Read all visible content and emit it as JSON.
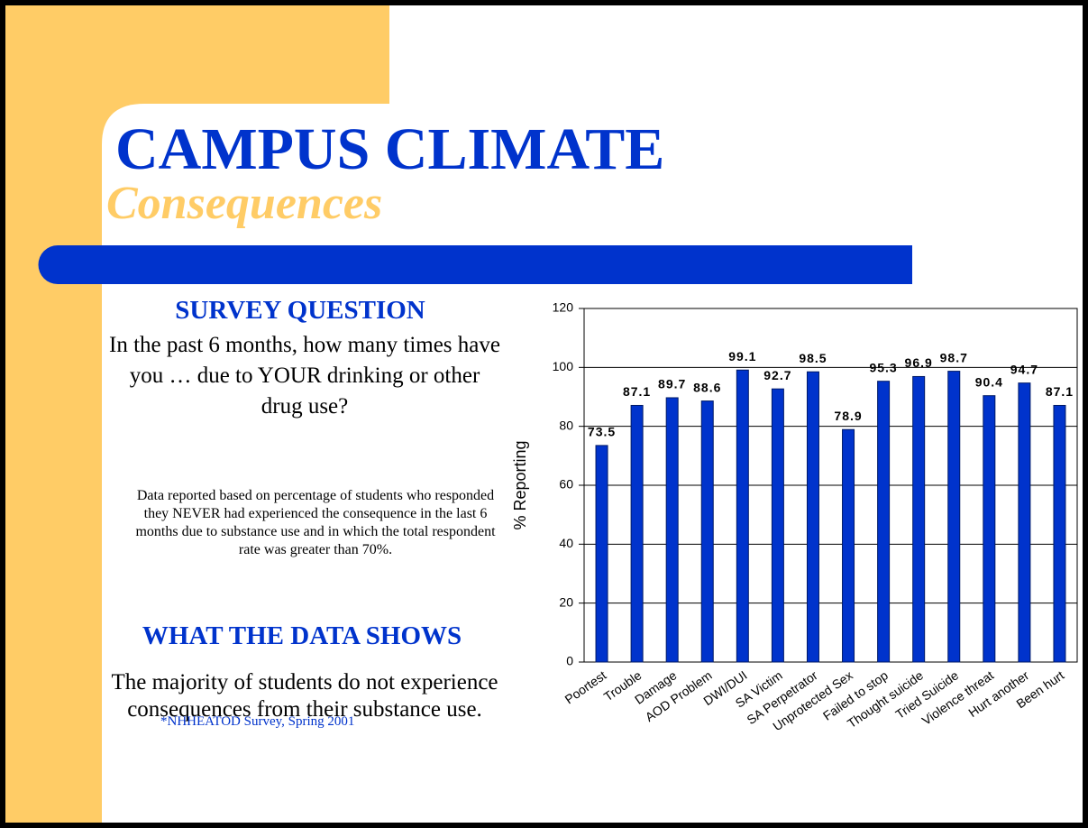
{
  "slide": {
    "title": "CAMPUS CLIMATE",
    "subtitle": "Consequences",
    "survey_heading": "SURVEY QUESTION",
    "survey_question": "In the past 6 months, how many times have you … due to YOUR drinking or other drug use?",
    "note": "Data reported based on percentage of students who responded they NEVER had experienced the consequence in the last 6 months due to substance use and in which the total respondent rate was greater than 70%.",
    "data_heading": "WHAT THE DATA SHOWS",
    "conclusion": "The majority of students do not experience consequences from their substance use.",
    "source": "*NHHEATOD Survey, Spring 2001"
  },
  "chart_data": {
    "type": "bar",
    "y_label": "% Reporting",
    "categories": [
      "Poortest",
      "Trouble",
      "Damage",
      "AOD Problem",
      "DWI/DUI",
      "SA Victim",
      "SA Perpetrator",
      "Unprotected Sex",
      "Failed to stop",
      "Thought suicide",
      "Tried Suicide",
      "Violence threat",
      "Hurt another",
      "Been hurt"
    ],
    "values": [
      73.5,
      87.1,
      89.7,
      88.6,
      99.1,
      92.7,
      98.5,
      78.9,
      95.3,
      96.9,
      98.7,
      90.4,
      94.7,
      87.1
    ],
    "color": "#0033cc",
    "ylim": [
      0,
      120
    ],
    "yticks": [
      0,
      20,
      40,
      60,
      80,
      100,
      120
    ],
    "grid": true
  }
}
